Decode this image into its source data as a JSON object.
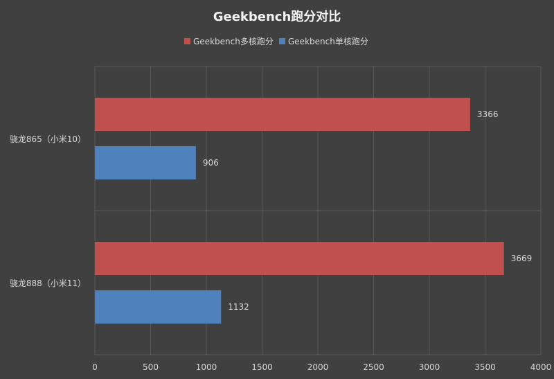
{
  "chart_data": {
    "type": "bar",
    "orientation": "horizontal",
    "title": "Geekbench跑分对比",
    "categories": [
      "骁龙865（小米10）",
      "骁龙888（小米11）"
    ],
    "series": [
      {
        "name": "Geekbench多核跑分",
        "color": "#c0504d",
        "values": [
          3366,
          3669
        ]
      },
      {
        "name": "Geekbench单核跑分",
        "color": "#4f81bd",
        "values": [
          906,
          1132
        ]
      }
    ],
    "xlim": [
      0,
      4000
    ],
    "xticks": [
      0,
      500,
      1000,
      1500,
      2000,
      2500,
      3000,
      3500,
      4000
    ],
    "grid": true,
    "legend_position": "top-center",
    "data_labels": true
  },
  "colors": {
    "background": "#404040",
    "grid": "#5a5a5a",
    "text": "#d9d9d9"
  }
}
